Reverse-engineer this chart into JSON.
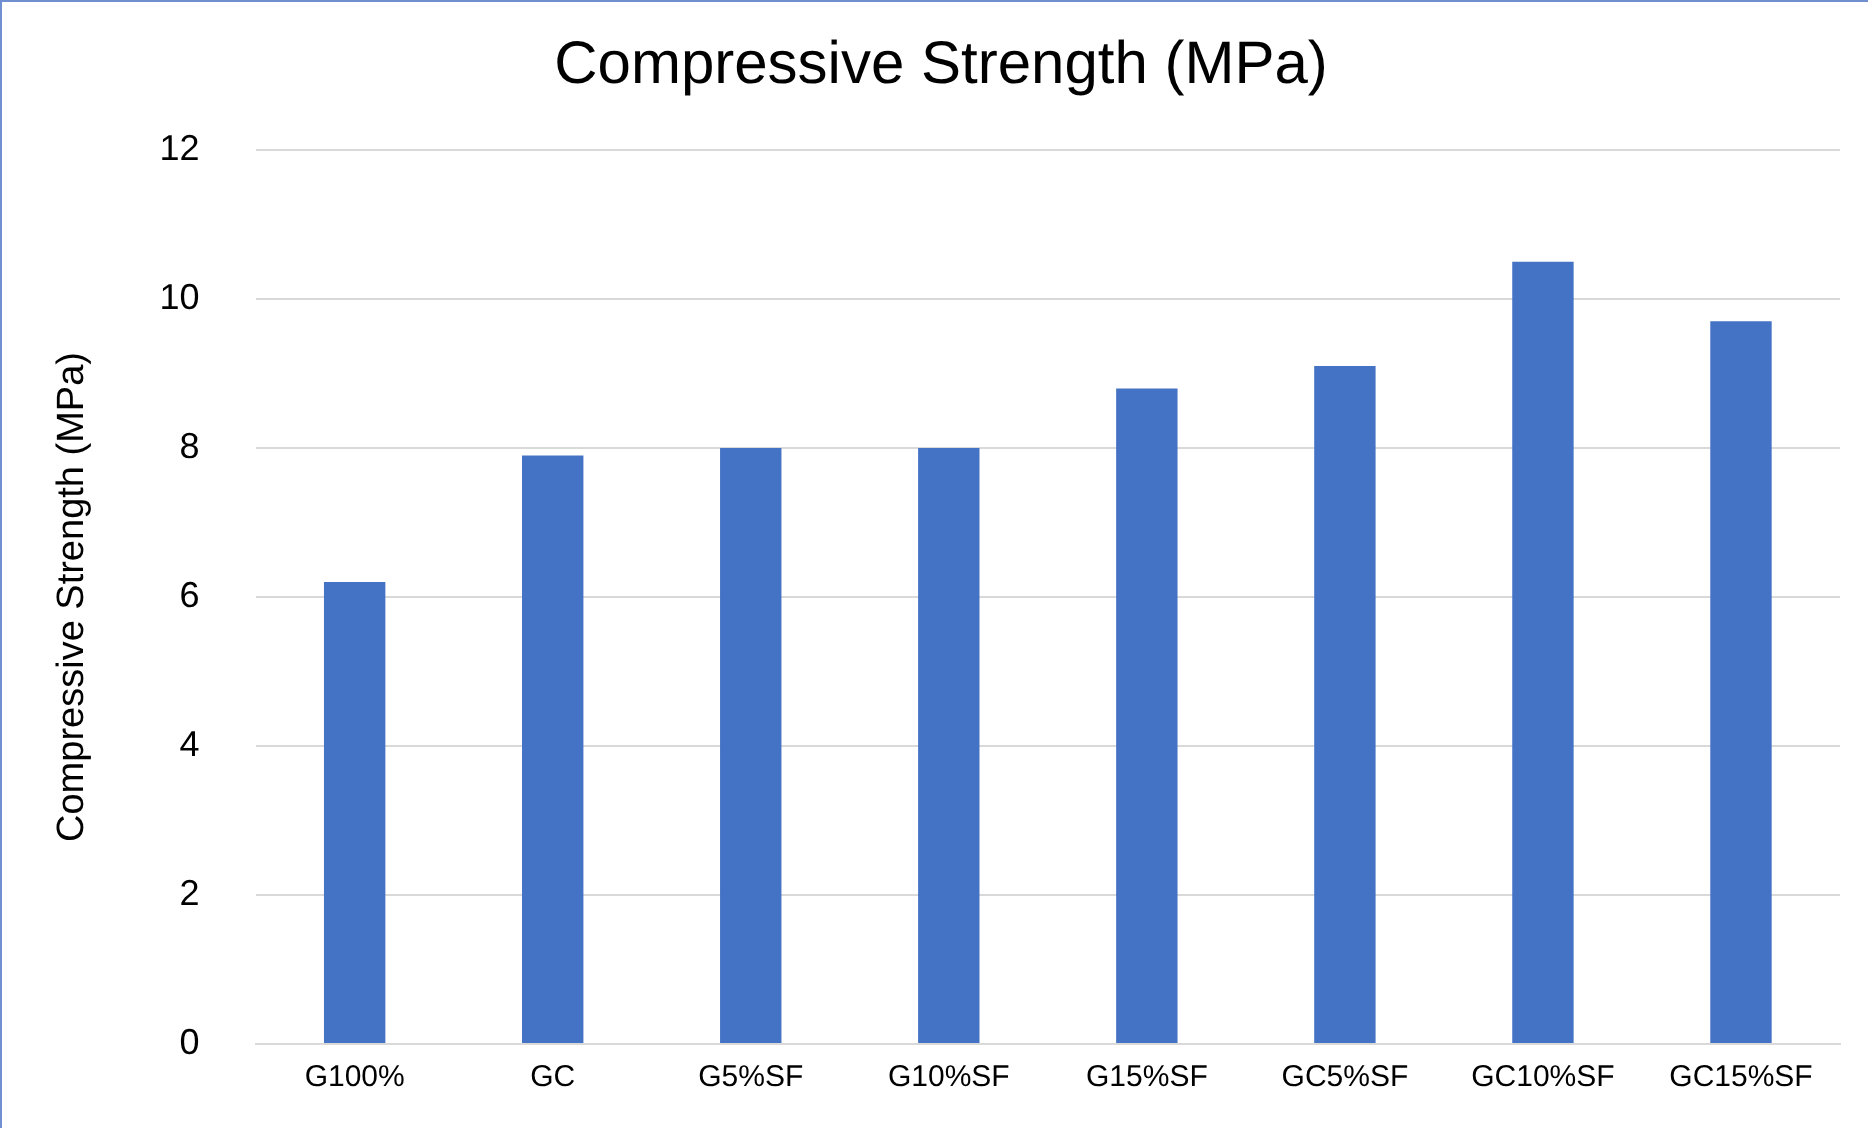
{
  "chart_data": {
    "type": "bar",
    "title": "Compressive Strength (MPa)",
    "ylabel": "Compressive Strength (MPa)",
    "categories": [
      "G100%",
      "GC",
      "G5%SF",
      "G10%SF",
      "G15%SF",
      "GC5%SF",
      "GC10%SF",
      "GC15%SF"
    ],
    "values": [
      6.2,
      7.9,
      8.0,
      8.0,
      8.8,
      9.1,
      10.5,
      9.7
    ],
    "color": "#4472c4",
    "ylim": [
      0,
      12
    ],
    "yticks": [
      0,
      2,
      4,
      6,
      8,
      10,
      12
    ],
    "grid": "y",
    "legend": false
  }
}
